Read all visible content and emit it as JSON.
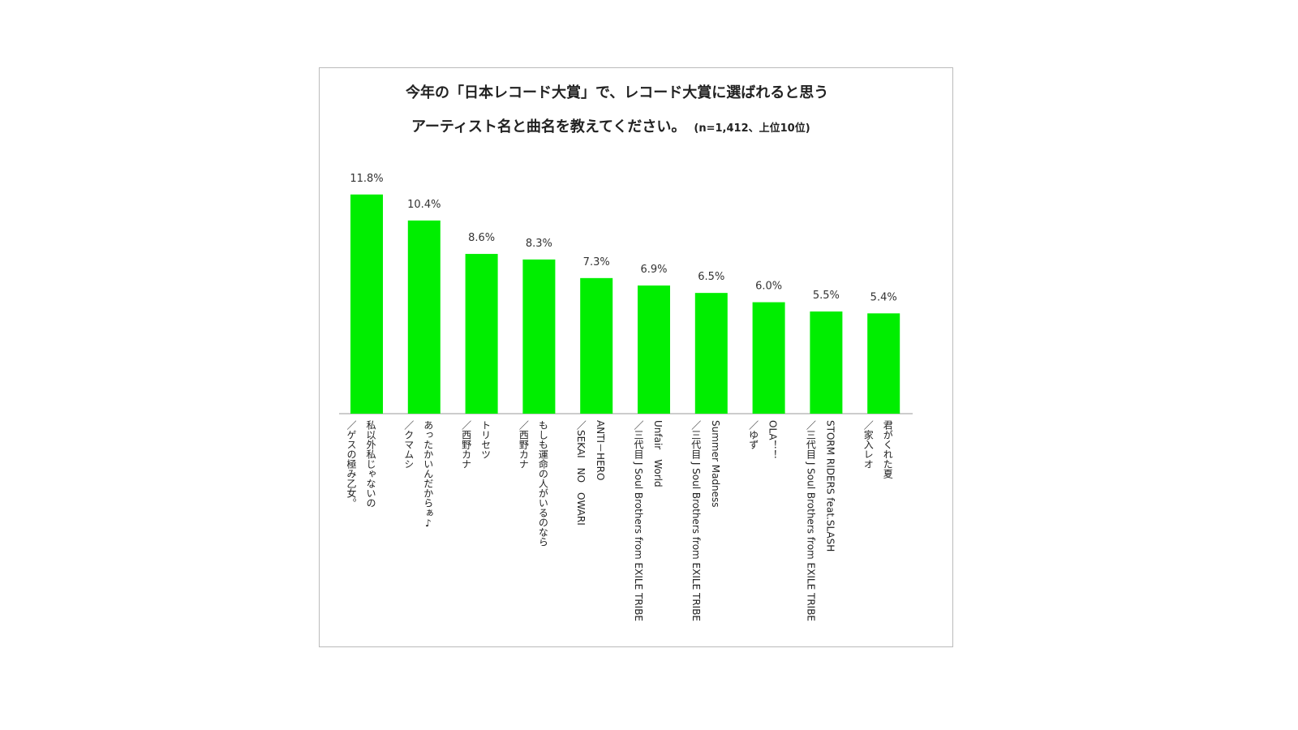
{
  "chart_data": {
    "type": "bar",
    "title": [
      "今年の「日本レコード大賞」で、レコード大賞に選ばれると思う",
      "アーティスト名と曲名を教えてください。"
    ],
    "subtitle": "(n=1,412、上位10位)",
    "categories": [
      [
        "私以外私じゃないの",
        "／ゲスの極み乙女。"
      ],
      [
        "あったかいんだからぁ♪",
        "／クマムシ"
      ],
      [
        "トリセツ",
        "／西野カナ"
      ],
      [
        "もしも運命の人がいるのなら",
        "／西野カナ"
      ],
      [
        "ANTI－HERO",
        "／SEKAI　NO　OWARI"
      ],
      [
        "Unfair　World",
        "／三代目 J Soul Brothers from EXILE TRIBE"
      ],
      [
        "Summer Madness",
        "／三代目 J Soul Brothers from EXILE TRIBE"
      ],
      [
        "OLA！！",
        "／ゆず"
      ],
      [
        "STORM RIDERS feat.SLASH",
        "／三代目 J Soul Brothers from EXILE TRIBE"
      ],
      [
        "君がくれた夏",
        "／家入レオ"
      ]
    ],
    "values": [
      11.8,
      10.4,
      8.6,
      8.3,
      7.3,
      6.9,
      6.5,
      6.0,
      5.5,
      5.4
    ],
    "value_labels": [
      "11.8%",
      "10.4%",
      "8.6%",
      "8.3%",
      "7.3%",
      "6.9%",
      "6.5%",
      "6.0%",
      "5.5%",
      "5.4%"
    ],
    "color": "#00ee00"
  }
}
